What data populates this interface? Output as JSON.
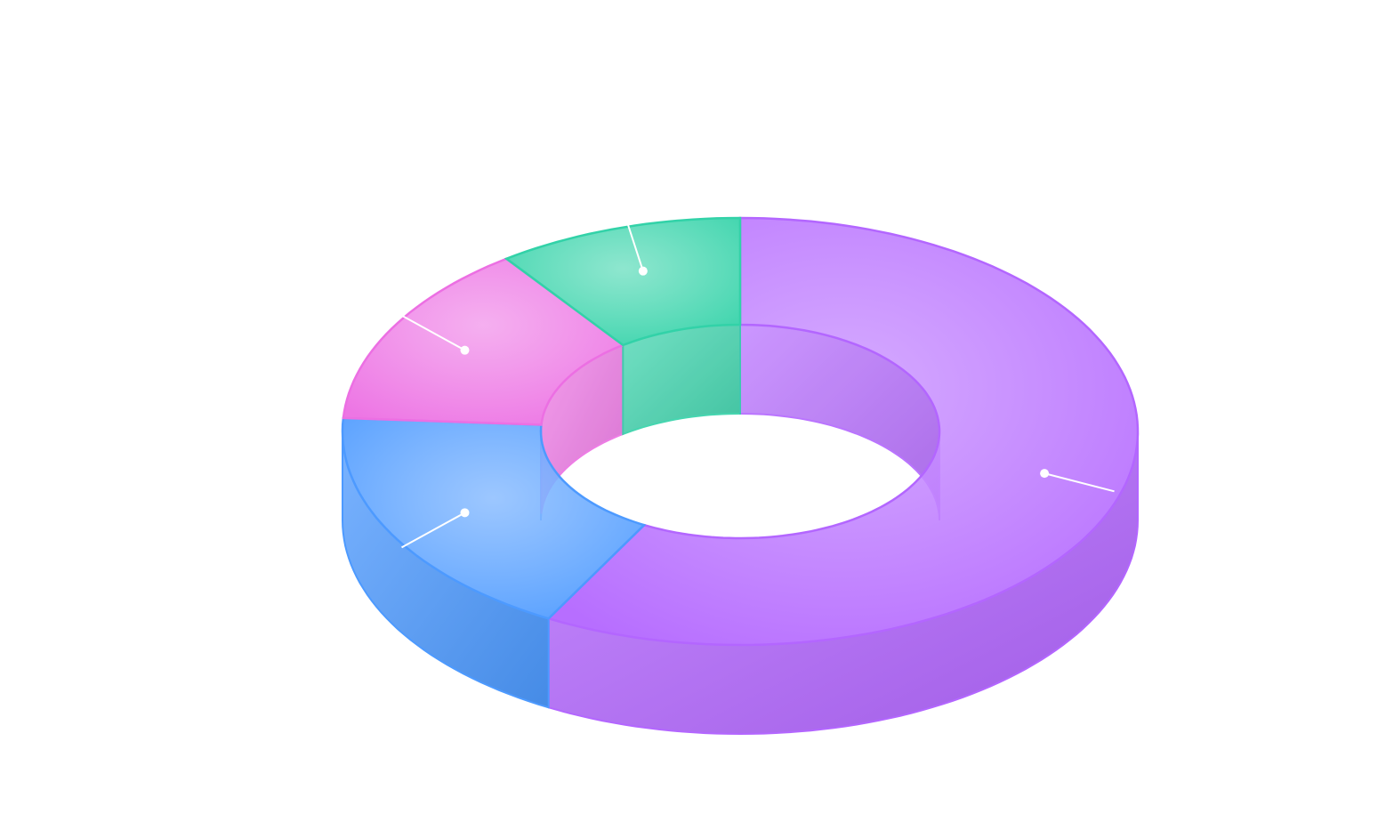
{
  "chart_data": {
    "type": "pie",
    "variant": "3d-donut",
    "title": "",
    "categories": [
      "",
      "",
      "",
      ""
    ],
    "values": [
      58,
      18,
      14,
      10
    ],
    "colors": [
      "#b366ff",
      "#4d9aff",
      "#ec6fe3",
      "#32d2a8"
    ],
    "legend": "none",
    "labels_shown": false
  }
}
